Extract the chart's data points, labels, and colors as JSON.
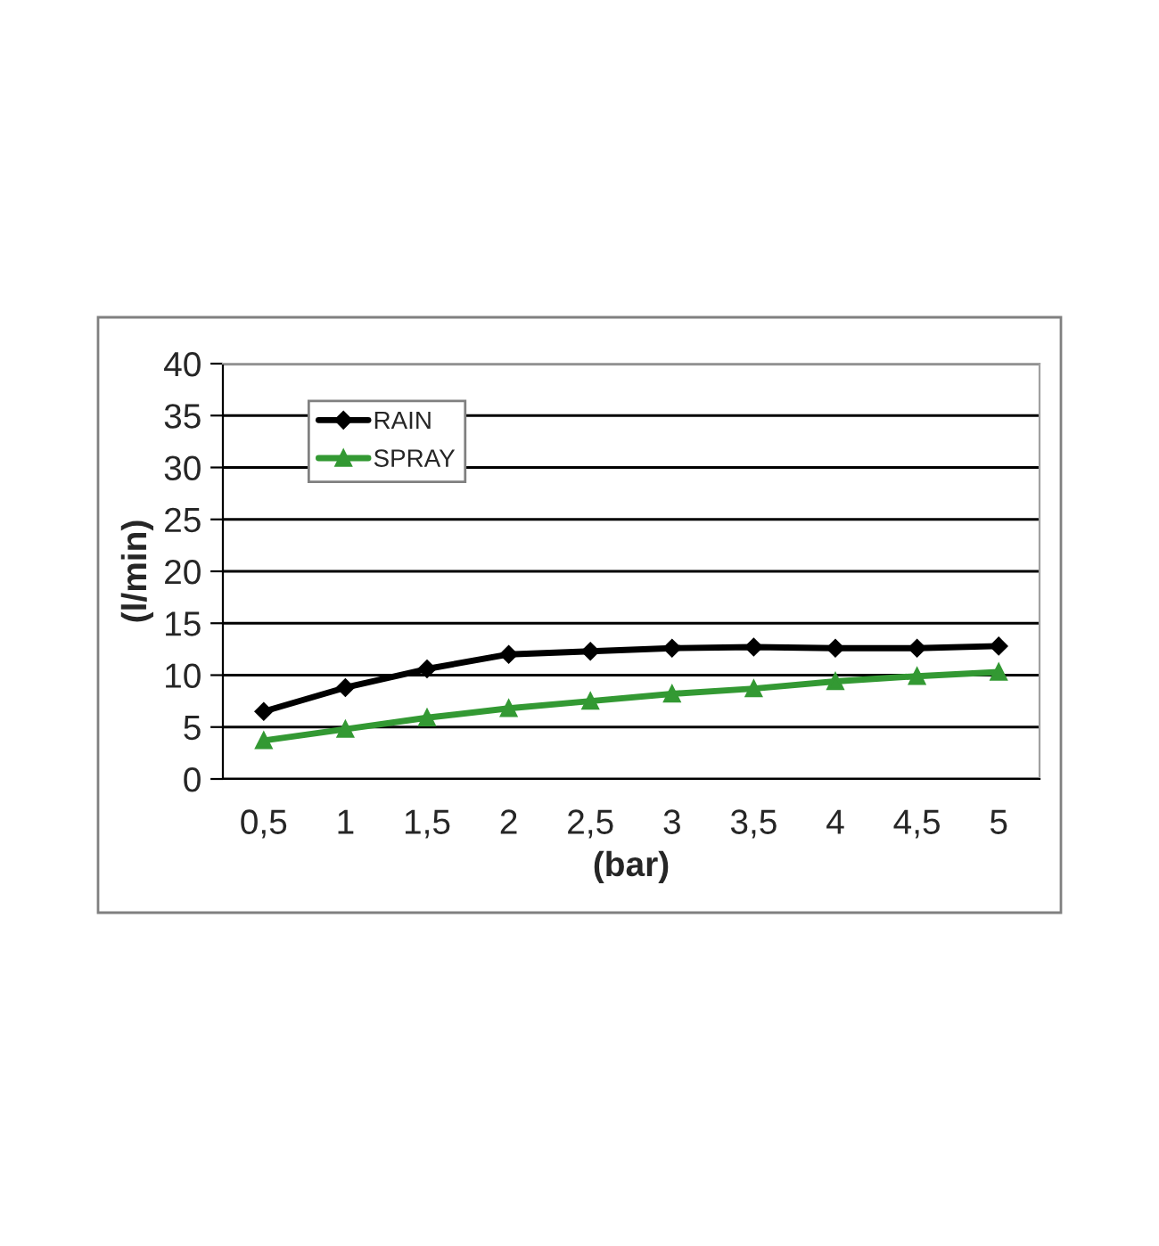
{
  "chart_data": {
    "type": "line",
    "xlabel": "(bar)",
    "ylabel": "(l/min)",
    "categories": [
      "0,5",
      "1",
      "1,5",
      "2",
      "2,5",
      "3",
      "3,5",
      "4",
      "4,5",
      "5"
    ],
    "series": [
      {
        "name": "RAIN",
        "color": "#000000",
        "marker": "diamond",
        "values": [
          6.5,
          8.8,
          10.6,
          12.0,
          12.3,
          12.6,
          12.7,
          12.6,
          12.6,
          12.8
        ]
      },
      {
        "name": "SPRAY",
        "color": "#339933",
        "marker": "triangle",
        "values": [
          3.7,
          4.8,
          5.9,
          6.8,
          7.5,
          8.2,
          8.7,
          9.4,
          9.9,
          10.3
        ]
      }
    ],
    "ylim": [
      0,
      40
    ],
    "yticks": [
      0,
      5,
      10,
      15,
      20,
      25,
      30,
      35,
      40
    ],
    "grid": "y",
    "legend": "top left",
    "line_style": "solid"
  }
}
